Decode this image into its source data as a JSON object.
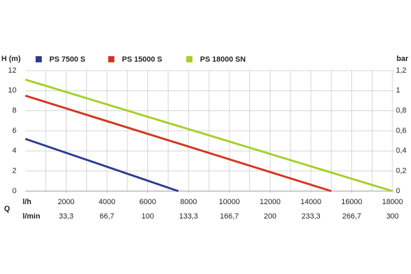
{
  "chart_data": {
    "type": "line",
    "ylabel": "H (m)",
    "y2label": "bar",
    "xlabel": "l/h",
    "x2label": "l/min",
    "qlabel": "Q",
    "xlim": [
      0,
      18000
    ],
    "xticks": [
      2000,
      4000,
      6000,
      8000,
      10000,
      12000,
      14000,
      16000,
      18000
    ],
    "xminor_ticks": [
      1000,
      3000,
      5000,
      7000,
      9000,
      11000,
      13000,
      15000,
      17000
    ],
    "x2ticks": [
      {
        "value": 2000,
        "label": "33,3"
      },
      {
        "value": 4000,
        "label": "66,7"
      },
      {
        "value": 6000,
        "label": "100"
      },
      {
        "value": 8000,
        "label": "133,3"
      },
      {
        "value": 10000,
        "label": "166,7"
      },
      {
        "value": 12000,
        "label": "200"
      },
      {
        "value": 14000,
        "label": "233,3"
      },
      {
        "value": 16000,
        "label": "266,7"
      },
      {
        "value": 18000,
        "label": "300"
      }
    ],
    "ylim": [
      0,
      12
    ],
    "yticks": [
      0,
      2,
      4,
      6,
      8,
      10,
      12
    ],
    "y2lim": [
      0,
      1.2
    ],
    "y2ticks": [
      0,
      {
        "value": 0.2,
        "label": "0,2"
      },
      {
        "value": 0.4,
        "label": "0,4"
      },
      {
        "value": 0.6,
        "label": "0,6"
      },
      {
        "value": 0.8,
        "label": "0,8"
      },
      1,
      {
        "value": 1.2,
        "label": "1,2"
      }
    ],
    "grid": true,
    "series": [
      {
        "name": "PS 7500 S",
        "color": "#2b3d8f",
        "x": [
          0,
          7500
        ],
        "values": [
          5.2,
          0
        ]
      },
      {
        "name": "PS 15000 S",
        "color": "#d3361e",
        "x": [
          0,
          15000
        ],
        "values": [
          9.5,
          0
        ]
      },
      {
        "name": "PS 18000 SN",
        "color": "#a6cf2a",
        "x": [
          0,
          18000
        ],
        "values": [
          11.1,
          0
        ]
      }
    ]
  }
}
